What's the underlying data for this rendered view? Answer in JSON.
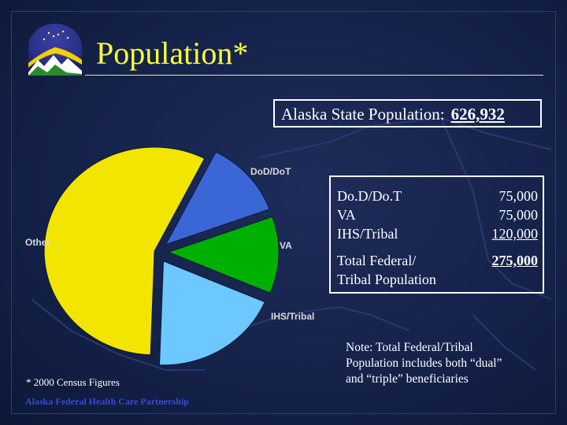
{
  "title": "Population*",
  "state_box": {
    "label": "Alaska State Population:",
    "value": "626,932"
  },
  "table": {
    "rows": [
      {
        "label": "Do.D/Do.T",
        "value": "75,000"
      },
      {
        "label": "VA",
        "value": "75,000"
      },
      {
        "label": "IHS/Tribal",
        "value": "120,000"
      }
    ],
    "total_label_line1": "Total Federal/",
    "total_label_line2": "Tribal Population",
    "total_value": "275,000"
  },
  "note": {
    "line1": "Note:  Total Federal/Tribal",
    "line2": "Population includes both “dual”",
    "line3": "and “triple” beneficiaries"
  },
  "footnote": "* 2000 Census Figures",
  "partner": "Alaska Federal Health Care Partnership",
  "colors": {
    "background": "#15224a",
    "title": "#ffff33",
    "other": "#f2e600",
    "dod": "#3a66d6",
    "va": "#00b000",
    "ihs": "#6cc8ff"
  },
  "chart_data": {
    "type": "pie",
    "exploded": true,
    "slices": [
      {
        "label": "DoD/DoT",
        "value": 75000,
        "color": "#3a66d6"
      },
      {
        "label": "VA",
        "value": 75000,
        "color": "#00b000"
      },
      {
        "label": "IHS/Tribal",
        "value": 120000,
        "color": "#6cc8ff"
      },
      {
        "label": "Other",
        "value": 356932,
        "color": "#f2e600"
      }
    ]
  }
}
